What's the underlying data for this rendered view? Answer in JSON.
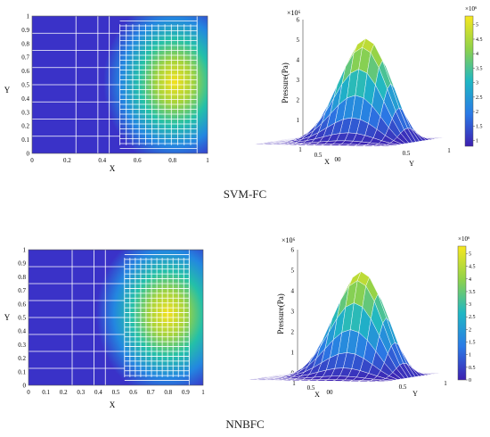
{
  "colors": {
    "low": "#3d1fb0",
    "mid": "#1fb7c4",
    "high": "#f7e71f",
    "mesh": "#ffffff"
  },
  "chart_data": [
    {
      "type": "heatmap",
      "name": "svm-fc-2d",
      "xlabel": "X",
      "ylabel": "Y",
      "xlim": [
        0,
        1
      ],
      "ylim": [
        0,
        1
      ],
      "xticks": [
        "0",
        "0.2",
        "0.4",
        "0.6",
        "0.8",
        "1"
      ],
      "yticks": [
        "0",
        "0.1",
        "0.2",
        "0.3",
        "0.4",
        "0.5",
        "0.6",
        "0.7",
        "0.8",
        "0.9",
        "1"
      ],
      "peak": {
        "x": 0.82,
        "y": 0.52
      }
    },
    {
      "type": "surface",
      "name": "svm-fc-3d",
      "zlabel": "Pressure(Pa)",
      "xlabel": "X",
      "ylabel": "Y",
      "scale_label": "×10⁶",
      "zticks": [
        "0",
        "1",
        "2",
        "3",
        "4",
        "5",
        "6"
      ],
      "base_ticks": [
        "1",
        "0.5",
        "00",
        "0.5",
        "1"
      ],
      "colorbar": {
        "ticks": [
          "1",
          "1.5",
          "2",
          "2.5",
          "3",
          "3.5",
          "4",
          "4.5",
          "5"
        ],
        "scale_label": "×10⁶"
      },
      "peak_value": 5.1
    },
    {
      "type": "heatmap",
      "name": "nnbfc-2d",
      "xlabel": "X",
      "ylabel": "Y",
      "xlim": [
        0,
        1
      ],
      "ylim": [
        0,
        1
      ],
      "xticks": [
        "0",
        "0.1",
        "0.2",
        "0.3",
        "0.4",
        "0.5",
        "0.6",
        "0.7",
        "0.8",
        "0.9",
        "1"
      ],
      "yticks": [
        "0",
        "0.1",
        "0.2",
        "0.3",
        "0.4",
        "0.5",
        "0.6",
        "0.7",
        "0.8",
        "0.9",
        "1"
      ],
      "peak": {
        "x": 0.8,
        "y": 0.52
      }
    },
    {
      "type": "surface",
      "name": "nnbfc-3d",
      "zlabel": "Pressure(Pa)",
      "xlabel": "X",
      "ylabel": "Y",
      "scale_label": "×10⁶",
      "zticks": [
        "0",
        "1",
        "2",
        "3",
        "4",
        "5",
        "6"
      ],
      "base_ticks": [
        "1",
        "0.5",
        "00",
        "0.5",
        "1"
      ],
      "colorbar": {
        "ticks": [
          "0",
          "0.5",
          "1",
          "1.5",
          "2",
          "2.5",
          "3",
          "3.5",
          "4",
          "4.5",
          "5"
        ],
        "scale_label": "×10⁶"
      },
      "peak_value": 5.2
    }
  ],
  "captions": {
    "top": "SVM-FC",
    "bottom": "NNBFC"
  }
}
